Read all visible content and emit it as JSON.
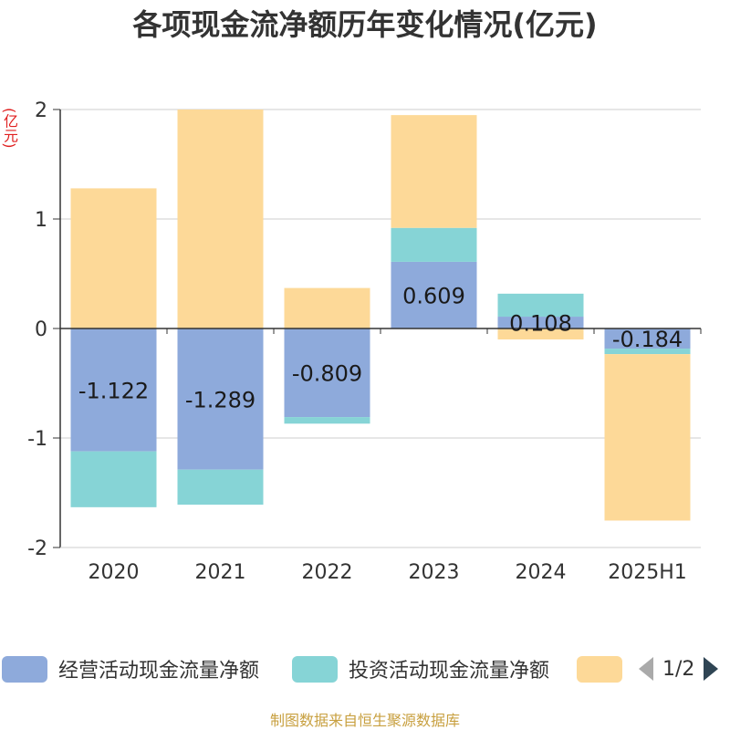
{
  "chart_data": {
    "type": "bar",
    "stacked": true,
    "title": "各项现金流净额历年变化情况(亿元)",
    "ylabel": "(亿元)",
    "categories": [
      "2020",
      "2021",
      "2022",
      "2023",
      "2024",
      "2025H1"
    ],
    "ylim": [
      -2,
      2
    ],
    "yticks": [
      2,
      1,
      0,
      -1,
      -2
    ],
    "grid": true,
    "series": [
      {
        "name": "经营活动现金流量净额",
        "color": "#8eaadb",
        "show_labels": true,
        "values": [
          -1.122,
          -1.289,
          -0.809,
          0.609,
          0.108,
          -0.184
        ]
      },
      {
        "name": "投资活动现金流量净额",
        "color": "#86d4d6",
        "show_labels": false,
        "values": [
          -0.51,
          -0.32,
          -0.06,
          0.31,
          0.21,
          -0.05
        ]
      },
      {
        "name": "",
        "color": "#fdd998",
        "show_labels": false,
        "values": [
          1.28,
          2.0,
          0.37,
          1.03,
          -0.1,
          -1.52
        ]
      }
    ],
    "legend_position": "bottom",
    "legend_page": "1/2"
  },
  "source_text": "制图数据来自恒生聚源数据库"
}
